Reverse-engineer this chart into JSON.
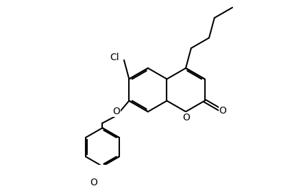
{
  "bg": "#ffffff",
  "lw": 1.5,
  "lw2": 1.5,
  "fs": 9,
  "fc": "black",
  "figsize": [
    4.27,
    2.72
  ],
  "dpi": 100,
  "cl_label": "Cl",
  "o_label": "O",
  "o2_label": "O",
  "o3_label": "O",
  "ome_label": "O"
}
